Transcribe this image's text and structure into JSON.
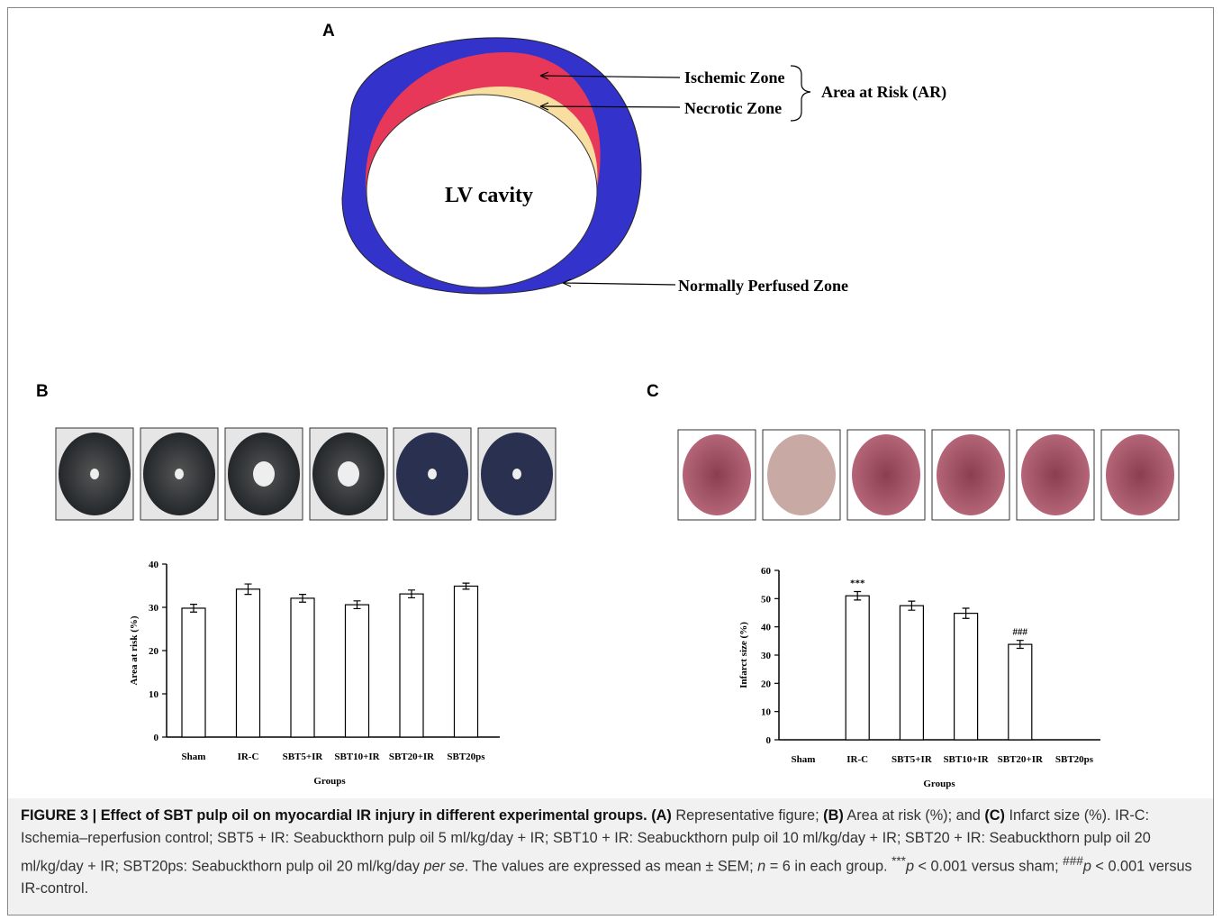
{
  "figure": {
    "panel_labels": [
      "A",
      "B",
      "C"
    ],
    "diagram": {
      "ischemic_zone": "Ischemic Zone",
      "necrotic_zone": "Necrotic Zone",
      "area_at_risk": "Area at Risk (AR)",
      "lv_cavity": "LV cavity",
      "normally_perfused_zone": "Normally Perfused Zone"
    }
  },
  "chart_data": [
    {
      "type": "bar",
      "categories": [
        "Sham",
        "IR-C",
        "SBT5+IR",
        "SBT10+IR",
        "SBT20+IR",
        "SBT20ps"
      ],
      "values": [
        29.8,
        34.2,
        32.1,
        30.6,
        33.1,
        34.9
      ],
      "errors": [
        0.9,
        1.2,
        0.9,
        0.9,
        0.9,
        0.7
      ],
      "color": "#ffffff",
      "edge_color": "#000000",
      "ylim": [
        0,
        40
      ],
      "yticks": [
        0,
        10,
        20,
        30,
        40
      ],
      "y_label": "Area at risk (%)",
      "x_label": "Groups"
    },
    {
      "type": "bar",
      "categories": [
        "Sham",
        "IR-C",
        "SBT5+IR",
        "SBT10+IR",
        "SBT20+IR",
        "SBT20ps"
      ],
      "values": [
        0,
        51,
        47.5,
        44.8,
        33.8,
        0
      ],
      "errors": [
        null,
        1.5,
        1.6,
        1.8,
        1.4,
        null
      ],
      "annotations": [
        null,
        "***",
        null,
        null,
        "###",
        null
      ],
      "color": "#ffffff",
      "edge_color": "#000000",
      "ylim": [
        0,
        60
      ],
      "yticks": [
        0,
        10,
        20,
        30,
        40,
        50,
        60
      ],
      "y_label": "Infarct size (%)",
      "x_label": "Groups"
    }
  ],
  "caption": [
    {
      "style": "bold",
      "text": "FIGURE 3 | Effect of SBT pulp oil on myocardial IR injury in different experimental groups. (A)"
    },
    {
      "style": "normal",
      "text": " Representative figure; "
    },
    {
      "style": "bold",
      "text": "(B)"
    },
    {
      "style": "normal",
      "text": " Area at risk (%); and "
    },
    {
      "style": "bold",
      "text": "(C)"
    },
    {
      "style": "normal",
      "text": " Infarct size (%). IR-C: Ischemia–reperfusion control; SBT5 + IR: Seabuckthorn pulp oil 5 ml/kg/day + IR; SBT10 + IR: Seabuckthorn pulp oil 10 ml/kg/day + IR; SBT20 + IR: Seabuckthorn pulp oil 20 ml/kg/day + IR; SBT20ps: Seabuckthorn pulp oil 20 ml/kg/day "
    },
    {
      "style": "italic",
      "text": "per se"
    },
    {
      "style": "normal",
      "text": ". The values are expressed as mean ± SEM; "
    },
    {
      "style": "italic",
      "text": "n"
    },
    {
      "style": "normal",
      "text": " = 6 in each group. "
    },
    {
      "style": "sup",
      "text": "***"
    },
    {
      "style": "italic",
      "text": "p"
    },
    {
      "style": "normal",
      "text": " < 0.001 versus sham; "
    },
    {
      "style": "sup",
      "text": "###"
    },
    {
      "style": "italic",
      "text": "p"
    },
    {
      "style": "normal",
      "text": " < 0.001 versus IR-control."
    }
  ]
}
